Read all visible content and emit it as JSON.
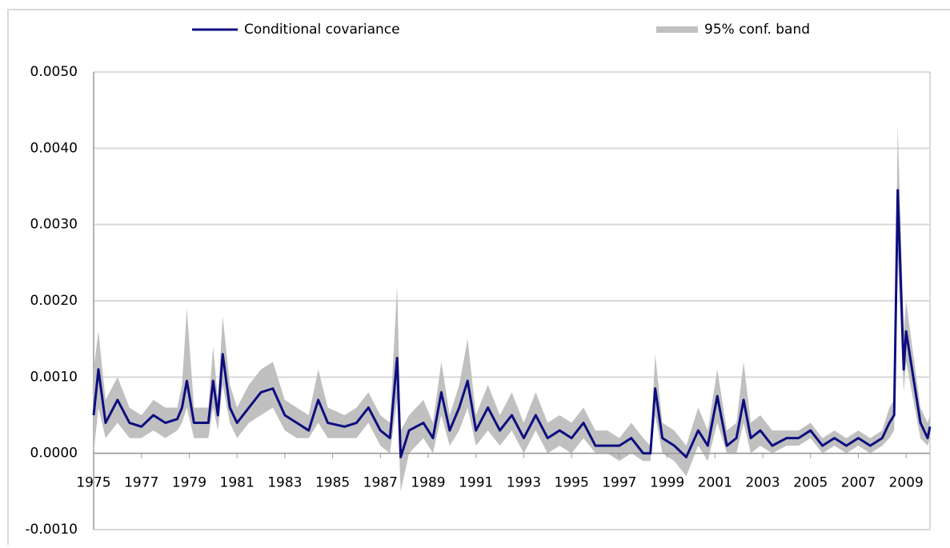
{
  "chart_data": {
    "type": "line",
    "legend": "top",
    "grid": true,
    "xlim": [
      1975,
      2010
    ],
    "ylim": [
      -0.001,
      0.005
    ],
    "xticks": [
      1975,
      1977,
      1979,
      1981,
      1983,
      1985,
      1987,
      1989,
      1991,
      1993,
      1995,
      1997,
      1999,
      2001,
      2003,
      2005,
      2007,
      2009
    ],
    "yticks": [
      {
        "value": -0.001,
        "label": "-0.0010"
      },
      {
        "value": 0,
        "label": "0.0000"
      },
      {
        "value": 0.001,
        "label": "0.0010"
      },
      {
        "value": 0.002,
        "label": "0.0020"
      },
      {
        "value": 0.003,
        "label": "0.0030"
      },
      {
        "value": 0.004,
        "label": "0.0040"
      },
      {
        "value": 0.005,
        "label": "0.0050"
      }
    ],
    "x": [
      1975.0,
      1975.2,
      1975.5,
      1976.0,
      1976.5,
      1977.0,
      1977.5,
      1978.0,
      1978.5,
      1978.7,
      1978.9,
      1979.2,
      1979.8,
      1980.0,
      1980.2,
      1980.4,
      1980.7,
      1981.0,
      1981.5,
      1982.0,
      1982.5,
      1983.0,
      1983.5,
      1984.0,
      1984.4,
      1984.8,
      1985.5,
      1986.0,
      1986.5,
      1987.0,
      1987.4,
      1987.7,
      1987.85,
      1988.2,
      1988.8,
      1989.2,
      1989.55,
      1989.9,
      1990.3,
      1990.65,
      1991.0,
      1991.5,
      1992.0,
      1992.5,
      1993.0,
      1993.5,
      1994.0,
      1994.5,
      1995.0,
      1995.5,
      1996.0,
      1996.5,
      1997.0,
      1997.5,
      1998.0,
      1998.3,
      1998.5,
      1998.8,
      1999.3,
      1999.8,
      2000.3,
      2000.7,
      2001.1,
      2001.5,
      2001.9,
      2002.2,
      2002.5,
      2002.9,
      2003.4,
      2004.0,
      2004.5,
      2005.0,
      2005.5,
      2006.0,
      2006.5,
      2007.0,
      2007.5,
      2008.0,
      2008.3,
      2008.5,
      2008.65,
      2008.9,
      2009.0,
      2009.3,
      2009.6,
      2009.9,
      2010.0
    ],
    "series": [
      {
        "name": "Conditional covariance",
        "color": "#0d0d80",
        "values": [
          0.0005,
          0.0011,
          0.0004,
          0.0007,
          0.0004,
          0.00035,
          0.0005,
          0.0004,
          0.00045,
          0.0006,
          0.00095,
          0.0004,
          0.0004,
          0.00095,
          0.0005,
          0.0013,
          0.0006,
          0.0004,
          0.0006,
          0.0008,
          0.00085,
          0.0005,
          0.0004,
          0.0003,
          0.0007,
          0.0004,
          0.00035,
          0.0004,
          0.0006,
          0.0003,
          0.0002,
          0.00125,
          -5e-05,
          0.0003,
          0.0004,
          0.0002,
          0.0008,
          0.0003,
          0.0006,
          0.00095,
          0.0003,
          0.0006,
          0.0003,
          0.0005,
          0.0002,
          0.0005,
          0.0002,
          0.0003,
          0.0002,
          0.0004,
          0.0001,
          0.0001,
          0.0001,
          0.0002,
          0.0,
          0.0,
          0.00085,
          0.0002,
          0.0001,
          -5e-05,
          0.0003,
          0.0001,
          0.00075,
          0.0001,
          0.0002,
          0.0007,
          0.0002,
          0.0003,
          0.0001,
          0.0002,
          0.0002,
          0.0003,
          0.0001,
          0.0002,
          0.0001,
          0.0002,
          0.0001,
          0.0002,
          0.0004,
          0.0005,
          0.00345,
          0.0011,
          0.0016,
          0.001,
          0.0004,
          0.0002,
          0.00035
        ]
      },
      {
        "name": "95% conf. band",
        "color": "#c0c0c0",
        "lower": [
          0.0,
          0.0006,
          0.0002,
          0.0004,
          0.0002,
          0.0002,
          0.0003,
          0.0002,
          0.0003,
          0.0004,
          0.0006,
          0.0002,
          0.0002,
          0.0006,
          0.0003,
          0.0009,
          0.0004,
          0.0002,
          0.0004,
          0.0005,
          0.0006,
          0.0003,
          0.0002,
          0.0002,
          0.0004,
          0.0002,
          0.0002,
          0.0002,
          0.0004,
          0.0001,
          0.0,
          0.0007,
          -0.0005,
          0.0,
          0.0002,
          0.0,
          0.0005,
          0.0001,
          0.0003,
          0.0006,
          0.0001,
          0.0003,
          0.0001,
          0.0003,
          0.0,
          0.0003,
          0.0,
          0.0001,
          0.0,
          0.0002,
          0.0,
          0.0,
          -0.0001,
          0.0,
          -0.0001,
          -0.0001,
          0.0005,
          0.0,
          -0.0001,
          -0.0003,
          0.0001,
          -0.0001,
          0.0004,
          0.0,
          0.0,
          0.0004,
          0.0,
          0.0001,
          0.0,
          0.0001,
          0.0001,
          0.0002,
          0.0,
          0.0001,
          0.0,
          0.0001,
          0.0,
          0.0001,
          0.0002,
          0.0003,
          0.0026,
          0.0008,
          0.0012,
          0.0007,
          0.0002,
          0.0001,
          0.0002
        ],
        "upper": [
          0.0011,
          0.0016,
          0.0007,
          0.001,
          0.0006,
          0.0005,
          0.0007,
          0.0006,
          0.0006,
          0.0009,
          0.0019,
          0.0006,
          0.0006,
          0.0014,
          0.0007,
          0.0018,
          0.0009,
          0.0006,
          0.0009,
          0.0011,
          0.0012,
          0.0007,
          0.0006,
          0.0005,
          0.0011,
          0.0006,
          0.0005,
          0.0006,
          0.0008,
          0.0005,
          0.0004,
          0.0022,
          0.0003,
          0.0005,
          0.0007,
          0.0004,
          0.0012,
          0.0005,
          0.0009,
          0.0015,
          0.0005,
          0.0009,
          0.0005,
          0.0008,
          0.0004,
          0.0008,
          0.0004,
          0.0005,
          0.0004,
          0.0006,
          0.0003,
          0.0003,
          0.0002,
          0.0004,
          0.0002,
          0.0001,
          0.0013,
          0.0004,
          0.0003,
          0.0001,
          0.0006,
          0.0003,
          0.0011,
          0.0003,
          0.0004,
          0.0012,
          0.0004,
          0.0005,
          0.0003,
          0.0003,
          0.0003,
          0.0004,
          0.0002,
          0.0003,
          0.0002,
          0.0003,
          0.0002,
          0.0003,
          0.0006,
          0.0007,
          0.0043,
          0.0016,
          0.002,
          0.0013,
          0.0006,
          0.0004,
          0.0005
        ]
      }
    ]
  }
}
